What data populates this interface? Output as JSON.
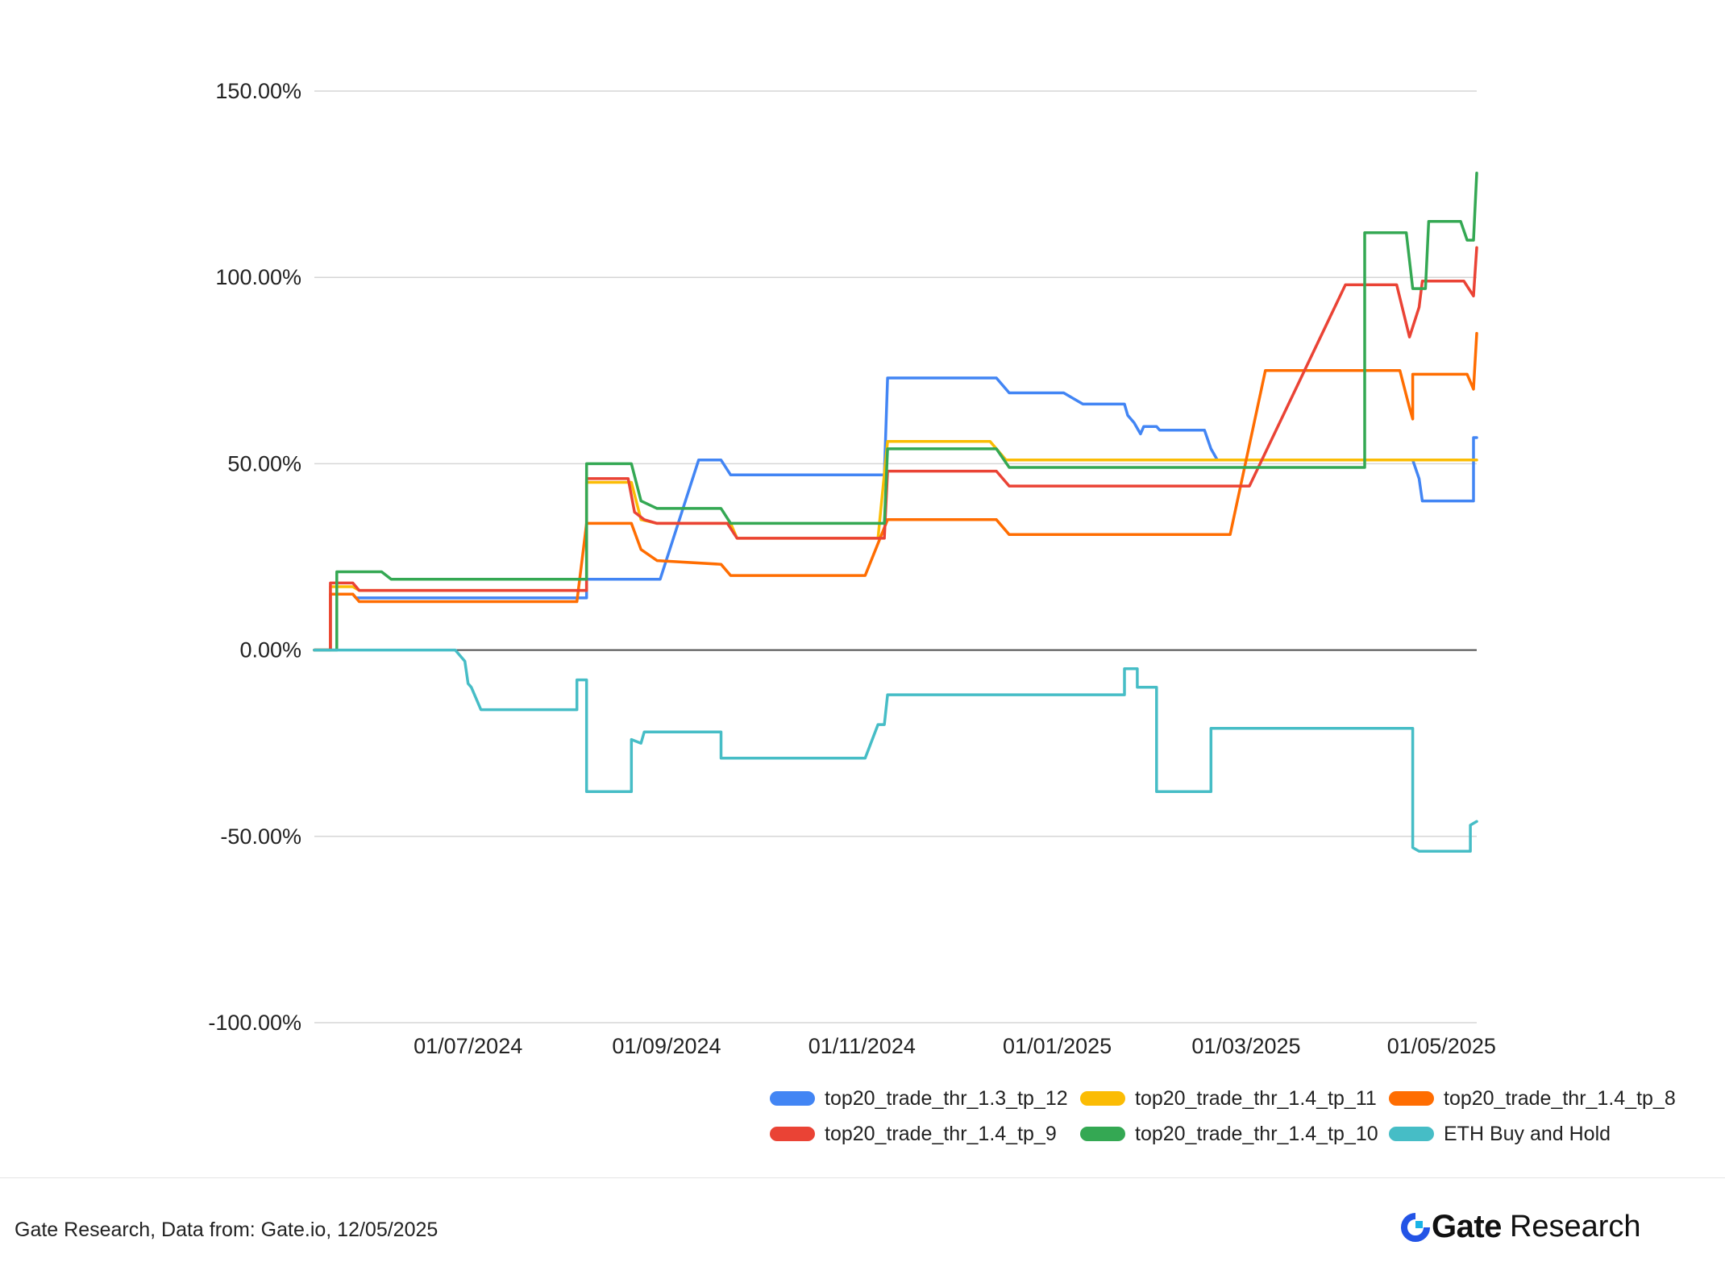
{
  "chart_data": {
    "type": "line",
    "title": "",
    "xlabel": "",
    "ylabel": "",
    "ylim": [
      -100,
      150
    ],
    "yticks": [
      150,
      100,
      50,
      0,
      -50,
      -100
    ],
    "ytick_labels": [
      "150.00%",
      "100.00%",
      "50.00%",
      "0.00%",
      "-50.00%",
      "-100.00%"
    ],
    "xlim": [
      "2024-05-14",
      "2025-05-12"
    ],
    "xticks": [
      "2024-07-01",
      "2024-09-01",
      "2024-11-01",
      "2025-01-01",
      "2025-03-01",
      "2025-05-01"
    ],
    "xtick_labels": [
      "01/07/2024",
      "01/09/2024",
      "01/11/2024",
      "01/01/2025",
      "01/03/2025",
      "01/05/2025"
    ],
    "grid": true,
    "legend_position": "bottom-right",
    "series": [
      {
        "name": "top20_trade_thr_1.3_tp_12",
        "color": "#4285f4",
        "points": [
          [
            "2024-05-14",
            0
          ],
          [
            "2024-05-19",
            0
          ],
          [
            "2024-05-19",
            15
          ],
          [
            "2024-05-26",
            15
          ],
          [
            "2024-05-27",
            14
          ],
          [
            "2024-08-07",
            14
          ],
          [
            "2024-08-07",
            19
          ],
          [
            "2024-08-30",
            19
          ],
          [
            "2024-09-11",
            51
          ],
          [
            "2024-09-18",
            51
          ],
          [
            "2024-09-21",
            47
          ],
          [
            "2024-11-08",
            47
          ],
          [
            "2024-11-09",
            73
          ],
          [
            "2024-12-13",
            73
          ],
          [
            "2024-12-17",
            69
          ],
          [
            "2025-01-03",
            69
          ],
          [
            "2025-01-09",
            66
          ],
          [
            "2025-01-22",
            66
          ],
          [
            "2025-01-23",
            63
          ],
          [
            "2025-01-25",
            61
          ],
          [
            "2025-01-27",
            58
          ],
          [
            "2025-01-28",
            60
          ],
          [
            "2025-02-01",
            60
          ],
          [
            "2025-02-02",
            59
          ],
          [
            "2025-02-16",
            59
          ],
          [
            "2025-02-18",
            54
          ],
          [
            "2025-02-20",
            51
          ],
          [
            "2025-04-22",
            51
          ],
          [
            "2025-04-24",
            46
          ],
          [
            "2025-04-25",
            40
          ],
          [
            "2025-05-11",
            40
          ],
          [
            "2025-05-11",
            57
          ],
          [
            "2025-05-12",
            57
          ]
        ]
      },
      {
        "name": "top20_trade_thr_1.4_tp_11",
        "color": "#fbbc04",
        "points": [
          [
            "2024-05-14",
            0
          ],
          [
            "2024-05-19",
            0
          ],
          [
            "2024-05-19",
            17
          ],
          [
            "2024-05-26",
            17
          ],
          [
            "2024-05-28",
            16
          ],
          [
            "2024-08-07",
            16
          ],
          [
            "2024-08-07",
            45
          ],
          [
            "2024-08-21",
            45
          ],
          [
            "2024-08-24",
            35
          ],
          [
            "2024-08-29",
            34
          ],
          [
            "2024-09-21",
            34
          ],
          [
            "2024-09-23",
            30
          ],
          [
            "2024-11-06",
            30
          ],
          [
            "2024-11-09",
            56
          ],
          [
            "2024-12-11",
            56
          ],
          [
            "2024-12-16",
            51
          ],
          [
            "2025-05-12",
            51
          ]
        ]
      },
      {
        "name": "top20_trade_thr_1.4_tp_8",
        "color": "#ff6d01",
        "points": [
          [
            "2024-05-14",
            0
          ],
          [
            "2024-05-19",
            0
          ],
          [
            "2024-05-19",
            15
          ],
          [
            "2024-05-26",
            15
          ],
          [
            "2024-05-28",
            13
          ],
          [
            "2024-08-04",
            13
          ],
          [
            "2024-08-07",
            34
          ],
          [
            "2024-08-21",
            34
          ],
          [
            "2024-08-24",
            27
          ],
          [
            "2024-08-29",
            24
          ],
          [
            "2024-09-18",
            23
          ],
          [
            "2024-09-21",
            20
          ],
          [
            "2024-11-02",
            20
          ],
          [
            "2024-11-09",
            35
          ],
          [
            "2024-12-13",
            35
          ],
          [
            "2024-12-17",
            31
          ],
          [
            "2025-02-24",
            31
          ],
          [
            "2025-03-07",
            75
          ],
          [
            "2025-04-18",
            75
          ],
          [
            "2025-04-21",
            65
          ],
          [
            "2025-04-22",
            62
          ],
          [
            "2025-04-22",
            74
          ],
          [
            "2025-05-09",
            74
          ],
          [
            "2025-05-11",
            70
          ],
          [
            "2025-05-12",
            85
          ]
        ]
      },
      {
        "name": "top20_trade_thr_1.4_tp_9",
        "color": "#ea4335",
        "points": [
          [
            "2024-05-14",
            0
          ],
          [
            "2024-05-19",
            0
          ],
          [
            "2024-05-19",
            18
          ],
          [
            "2024-05-26",
            18
          ],
          [
            "2024-05-28",
            16
          ],
          [
            "2024-08-07",
            16
          ],
          [
            "2024-08-07",
            46
          ],
          [
            "2024-08-20",
            46
          ],
          [
            "2024-08-22",
            37
          ],
          [
            "2024-08-25",
            35
          ],
          [
            "2024-08-29",
            34
          ],
          [
            "2024-09-20",
            34
          ],
          [
            "2024-09-23",
            30
          ],
          [
            "2024-11-08",
            30
          ],
          [
            "2024-11-09",
            48
          ],
          [
            "2024-12-13",
            48
          ],
          [
            "2024-12-17",
            44
          ],
          [
            "2025-03-02",
            44
          ],
          [
            "2025-04-01",
            98
          ],
          [
            "2025-04-17",
            98
          ],
          [
            "2025-04-21",
            84
          ],
          [
            "2025-04-24",
            92
          ],
          [
            "2025-04-25",
            99
          ],
          [
            "2025-05-08",
            99
          ],
          [
            "2025-05-11",
            95
          ],
          [
            "2025-05-12",
            108
          ]
        ]
      },
      {
        "name": "top20_trade_thr_1.4_tp_10",
        "color": "#34a853",
        "points": [
          [
            "2024-05-14",
            0
          ],
          [
            "2024-05-21",
            0
          ],
          [
            "2024-05-21",
            21
          ],
          [
            "2024-06-04",
            21
          ],
          [
            "2024-06-07",
            19
          ],
          [
            "2024-08-07",
            19
          ],
          [
            "2024-08-07",
            50
          ],
          [
            "2024-08-21",
            50
          ],
          [
            "2024-08-24",
            40
          ],
          [
            "2024-08-29",
            38
          ],
          [
            "2024-09-18",
            38
          ],
          [
            "2024-09-21",
            34
          ],
          [
            "2024-11-08",
            34
          ],
          [
            "2024-11-09",
            54
          ],
          [
            "2024-12-13",
            54
          ],
          [
            "2024-12-17",
            49
          ],
          [
            "2025-04-07",
            49
          ],
          [
            "2025-04-07",
            112
          ],
          [
            "2025-04-20",
            112
          ],
          [
            "2025-04-22",
            97
          ],
          [
            "2025-04-26",
            97
          ],
          [
            "2025-04-27",
            115
          ],
          [
            "2025-05-07",
            115
          ],
          [
            "2025-05-09",
            110
          ],
          [
            "2025-05-11",
            110
          ],
          [
            "2025-05-12",
            128
          ]
        ]
      },
      {
        "name": "ETH Buy and Hold",
        "color": "#46bdc6",
        "points": [
          [
            "2024-05-14",
            0
          ],
          [
            "2024-06-27",
            0
          ],
          [
            "2024-06-30",
            -3
          ],
          [
            "2024-07-01",
            -9
          ],
          [
            "2024-07-02",
            -10
          ],
          [
            "2024-07-05",
            -16
          ],
          [
            "2024-08-04",
            -16
          ],
          [
            "2024-08-04",
            -8
          ],
          [
            "2024-08-07",
            -8
          ],
          [
            "2024-08-07",
            -38
          ],
          [
            "2024-08-21",
            -38
          ],
          [
            "2024-08-21",
            -24
          ],
          [
            "2024-08-24",
            -25
          ],
          [
            "2024-08-25",
            -22
          ],
          [
            "2024-09-18",
            -22
          ],
          [
            "2024-09-18",
            -29
          ],
          [
            "2024-11-02",
            -29
          ],
          [
            "2024-11-06",
            -20
          ],
          [
            "2024-11-08",
            -20
          ],
          [
            "2024-11-09",
            -12
          ],
          [
            "2025-01-22",
            -12
          ],
          [
            "2025-01-22",
            -5
          ],
          [
            "2025-01-26",
            -5
          ],
          [
            "2025-01-26",
            -10
          ],
          [
            "2025-02-01",
            -10
          ],
          [
            "2025-02-01",
            -38
          ],
          [
            "2025-02-18",
            -38
          ],
          [
            "2025-02-18",
            -21
          ],
          [
            "2025-04-22",
            -21
          ],
          [
            "2025-04-22",
            -53
          ],
          [
            "2025-04-24",
            -54
          ],
          [
            "2025-05-10",
            -54
          ],
          [
            "2025-05-10",
            -47
          ],
          [
            "2025-05-12",
            -46
          ]
        ]
      }
    ]
  },
  "footer": {
    "source": "Gate Research, Data from: Gate.io, 12/05/2025",
    "brand_name": "Gate",
    "brand_suffix": "Research",
    "brand_color": "#2354e6"
  }
}
